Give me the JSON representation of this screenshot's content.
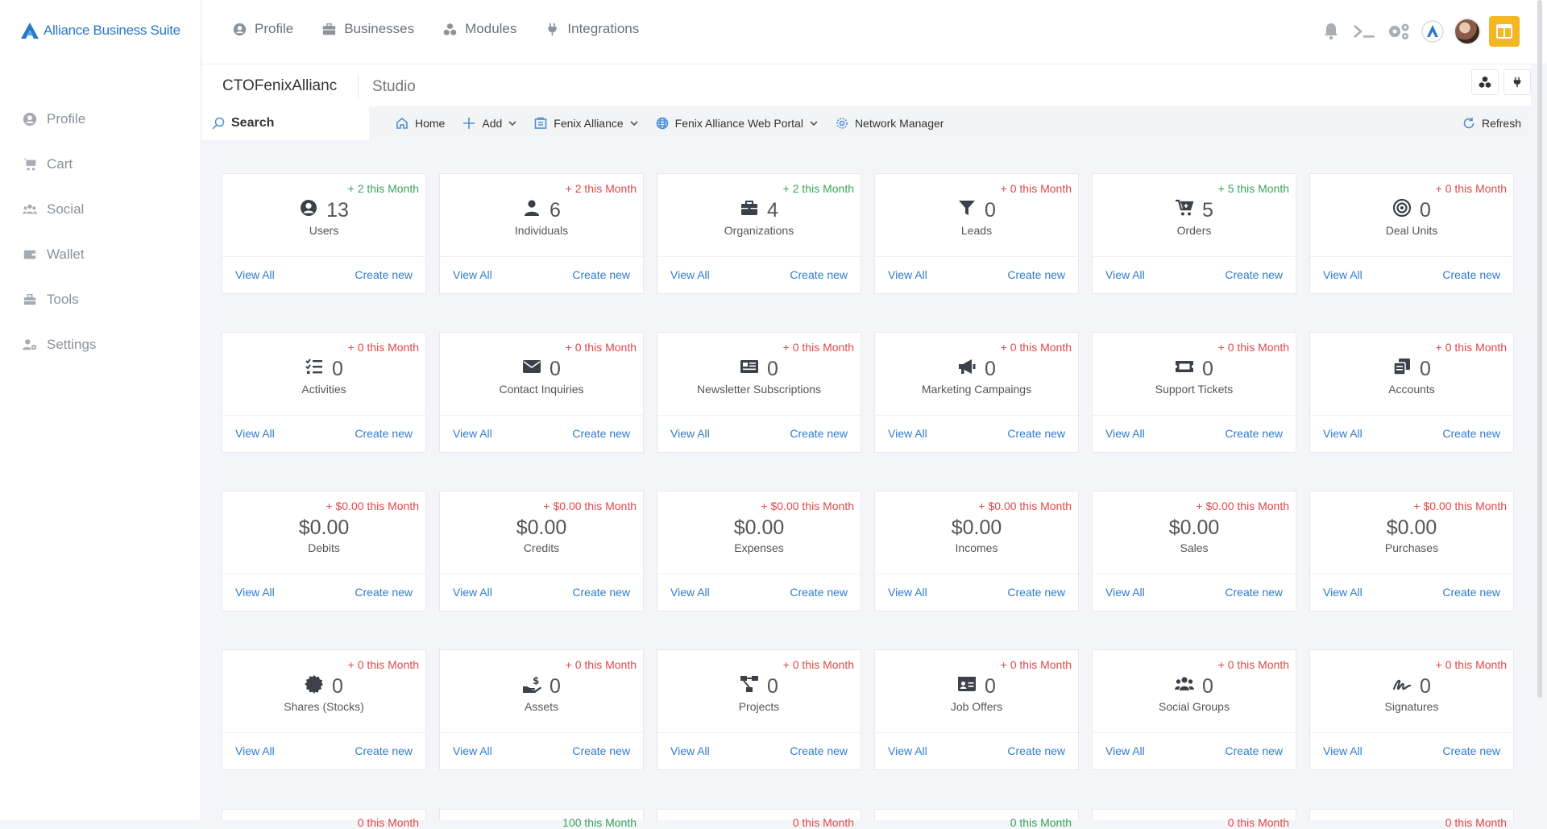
{
  "brand": {
    "name": "Alliance Business Suite"
  },
  "sidebar": {
    "items": [
      {
        "label": "Profile",
        "icon": "user-circle-icon"
      },
      {
        "label": "Cart",
        "icon": "cart-icon"
      },
      {
        "label": "Social",
        "icon": "users-icon"
      },
      {
        "label": "Wallet",
        "icon": "wallet-icon"
      },
      {
        "label": "Tools",
        "icon": "toolbox-icon"
      },
      {
        "label": "Settings",
        "icon": "user-gear-icon"
      }
    ]
  },
  "topnav": {
    "items": [
      {
        "label": "Profile",
        "icon": "user-circle-icon"
      },
      {
        "label": "Businesses",
        "icon": "briefcase-icon"
      },
      {
        "label": "Modules",
        "icon": "cubes-icon"
      },
      {
        "label": "Integrations",
        "icon": "plug-icon"
      }
    ]
  },
  "workspace": {
    "title": "CTOFenixAllianc",
    "subtitle": "Studio"
  },
  "toolbar": {
    "search_placeholder": "Search",
    "home": "Home",
    "add": "Add",
    "tenant": "Fenix Alliance",
    "portal": "Fenix Alliance Web Portal",
    "network": "Network Manager",
    "refresh": "Refresh"
  },
  "cards": [
    {
      "delta": "+ 2 this Month",
      "trend": "up",
      "value": "13",
      "label": "Users",
      "icon": "user-circle-icon"
    },
    {
      "delta": "+ 2 this Month",
      "trend": "down",
      "value": "6",
      "label": "Individuals",
      "icon": "user-icon"
    },
    {
      "delta": "+ 2 this Month",
      "trend": "up",
      "value": "4",
      "label": "Organizations",
      "icon": "briefcase-icon"
    },
    {
      "delta": "+ 0 this Month",
      "trend": "down",
      "value": "0",
      "label": "Leads",
      "icon": "filter-icon"
    },
    {
      "delta": "+ 5 this Month",
      "trend": "up",
      "value": "5",
      "label": "Orders",
      "icon": "cart-plus-icon"
    },
    {
      "delta": "+ 0 this Month",
      "trend": "down",
      "value": "0",
      "label": "Deal Units",
      "icon": "target-icon"
    },
    {
      "delta": "+ 0 this Month",
      "trend": "down",
      "value": "0",
      "label": "Activities",
      "icon": "tasks-icon"
    },
    {
      "delta": "+ 0 this Month",
      "trend": "down",
      "value": "0",
      "label": "Contact Inquiries",
      "icon": "envelope-icon"
    },
    {
      "delta": "+ 0 this Month",
      "trend": "down",
      "value": "0",
      "label": "Newsletter Subscriptions",
      "icon": "newspaper-icon"
    },
    {
      "delta": "+ 0 this Month",
      "trend": "down",
      "value": "0",
      "label": "Marketing Campaings",
      "icon": "megaphone-icon"
    },
    {
      "delta": "+ 0 this Month",
      "trend": "down",
      "value": "0",
      "label": "Support Tickets",
      "icon": "ticket-icon"
    },
    {
      "delta": "+ 0 this Month",
      "trend": "down",
      "value": "0",
      "label": "Accounts",
      "icon": "copy-icon"
    },
    {
      "delta": "+ $0.00 this Month",
      "trend": "down",
      "value": "$0.00",
      "label": "Debits",
      "icon": ""
    },
    {
      "delta": "+ $0.00 this Month",
      "trend": "down",
      "value": "$0.00",
      "label": "Credits",
      "icon": ""
    },
    {
      "delta": "+ $0.00 this Month",
      "trend": "down",
      "value": "$0.00",
      "label": "Expenses",
      "icon": ""
    },
    {
      "delta": "+ $0.00 this Month",
      "trend": "down",
      "value": "$0.00",
      "label": "Incomes",
      "icon": ""
    },
    {
      "delta": "+ $0.00 this Month",
      "trend": "down",
      "value": "$0.00",
      "label": "Sales",
      "icon": ""
    },
    {
      "delta": "+ $0.00 this Month",
      "trend": "down",
      "value": "$0.00",
      "label": "Purchases",
      "icon": ""
    },
    {
      "delta": "+ 0 this Month",
      "trend": "down",
      "value": "0",
      "label": "Shares (Stocks)",
      "icon": "certificate-icon"
    },
    {
      "delta": "+ 0 this Month",
      "trend": "down",
      "value": "0",
      "label": "Assets",
      "icon": "hand-dollar-icon"
    },
    {
      "delta": "+ 0 this Month",
      "trend": "down",
      "value": "0",
      "label": "Projects",
      "icon": "project-diagram-icon"
    },
    {
      "delta": "+ 0 this Month",
      "trend": "down",
      "value": "0",
      "label": "Job Offers",
      "icon": "id-card-icon"
    },
    {
      "delta": "+ 0 this Month",
      "trend": "down",
      "value": "0",
      "label": "Social Groups",
      "icon": "users-icon"
    },
    {
      "delta": "+ 0 this Month",
      "trend": "down",
      "value": "0",
      "label": "Signatures",
      "icon": "signature-icon"
    }
  ],
  "card_links": {
    "view_all": "View All",
    "create_new": "Create new"
  },
  "partial_row": [
    {
      "delta": "0 this Month",
      "trend": "down"
    },
    {
      "delta": "100 this Month",
      "trend": "up"
    },
    {
      "delta": "0 this Month",
      "trend": "down"
    },
    {
      "delta": "0 this Month",
      "trend": "up"
    },
    {
      "delta": "0 this Month",
      "trend": "down"
    },
    {
      "delta": "0 this Month",
      "trend": "down"
    }
  ],
  "colors": {
    "accent": "#2f7bcf",
    "up": "#3aa35a",
    "down": "#e04848",
    "layout_button": "#f2b722"
  }
}
